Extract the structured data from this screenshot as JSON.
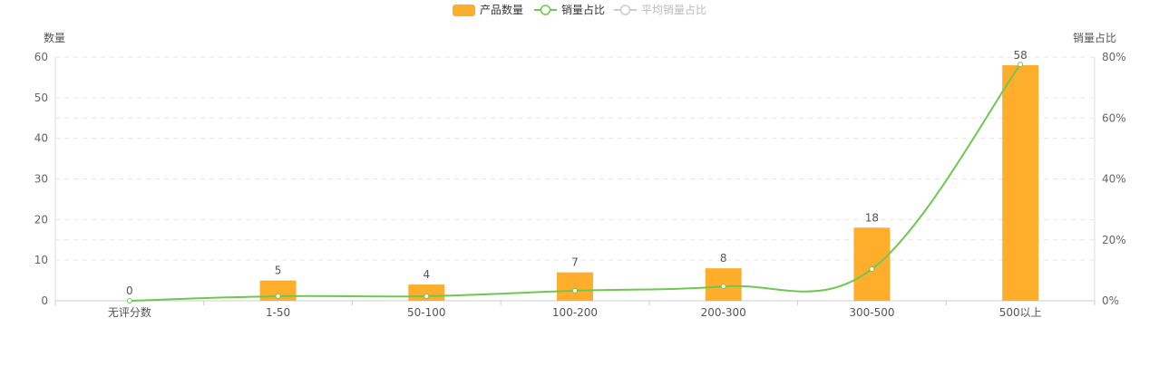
{
  "chart_data": {
    "type": "bar",
    "categories": [
      "无评分数",
      "1-50",
      "50-100",
      "100-200",
      "200-300",
      "300-500",
      "500以上"
    ],
    "series": [
      {
        "name": "产品数量",
        "type": "bar",
        "axis": "left",
        "values": [
          0,
          5,
          4,
          7,
          8,
          18,
          58
        ],
        "color": "#ffae2b"
      },
      {
        "name": "销量占比",
        "type": "line",
        "axis": "right",
        "smooth": true,
        "values_percent": [
          0,
          1.5,
          1.5,
          3.3,
          4.7,
          10.4,
          77.6
        ],
        "color": "#6ec84f"
      },
      {
        "name": "平均销量占比",
        "type": "line",
        "axis": "right",
        "disabled": true,
        "color": "#cccccc"
      }
    ],
    "ylabel": "数量",
    "ylabel_right": "销量占比",
    "ylim": [
      0,
      60
    ],
    "ylim_right": [
      0,
      80
    ],
    "yticks": [
      "0",
      "10",
      "20",
      "30",
      "40",
      "50",
      "60"
    ],
    "yticks_right": [
      "0%",
      "20%",
      "40%",
      "60%",
      "80%"
    ],
    "grid": true,
    "legend_position": "top-center"
  }
}
